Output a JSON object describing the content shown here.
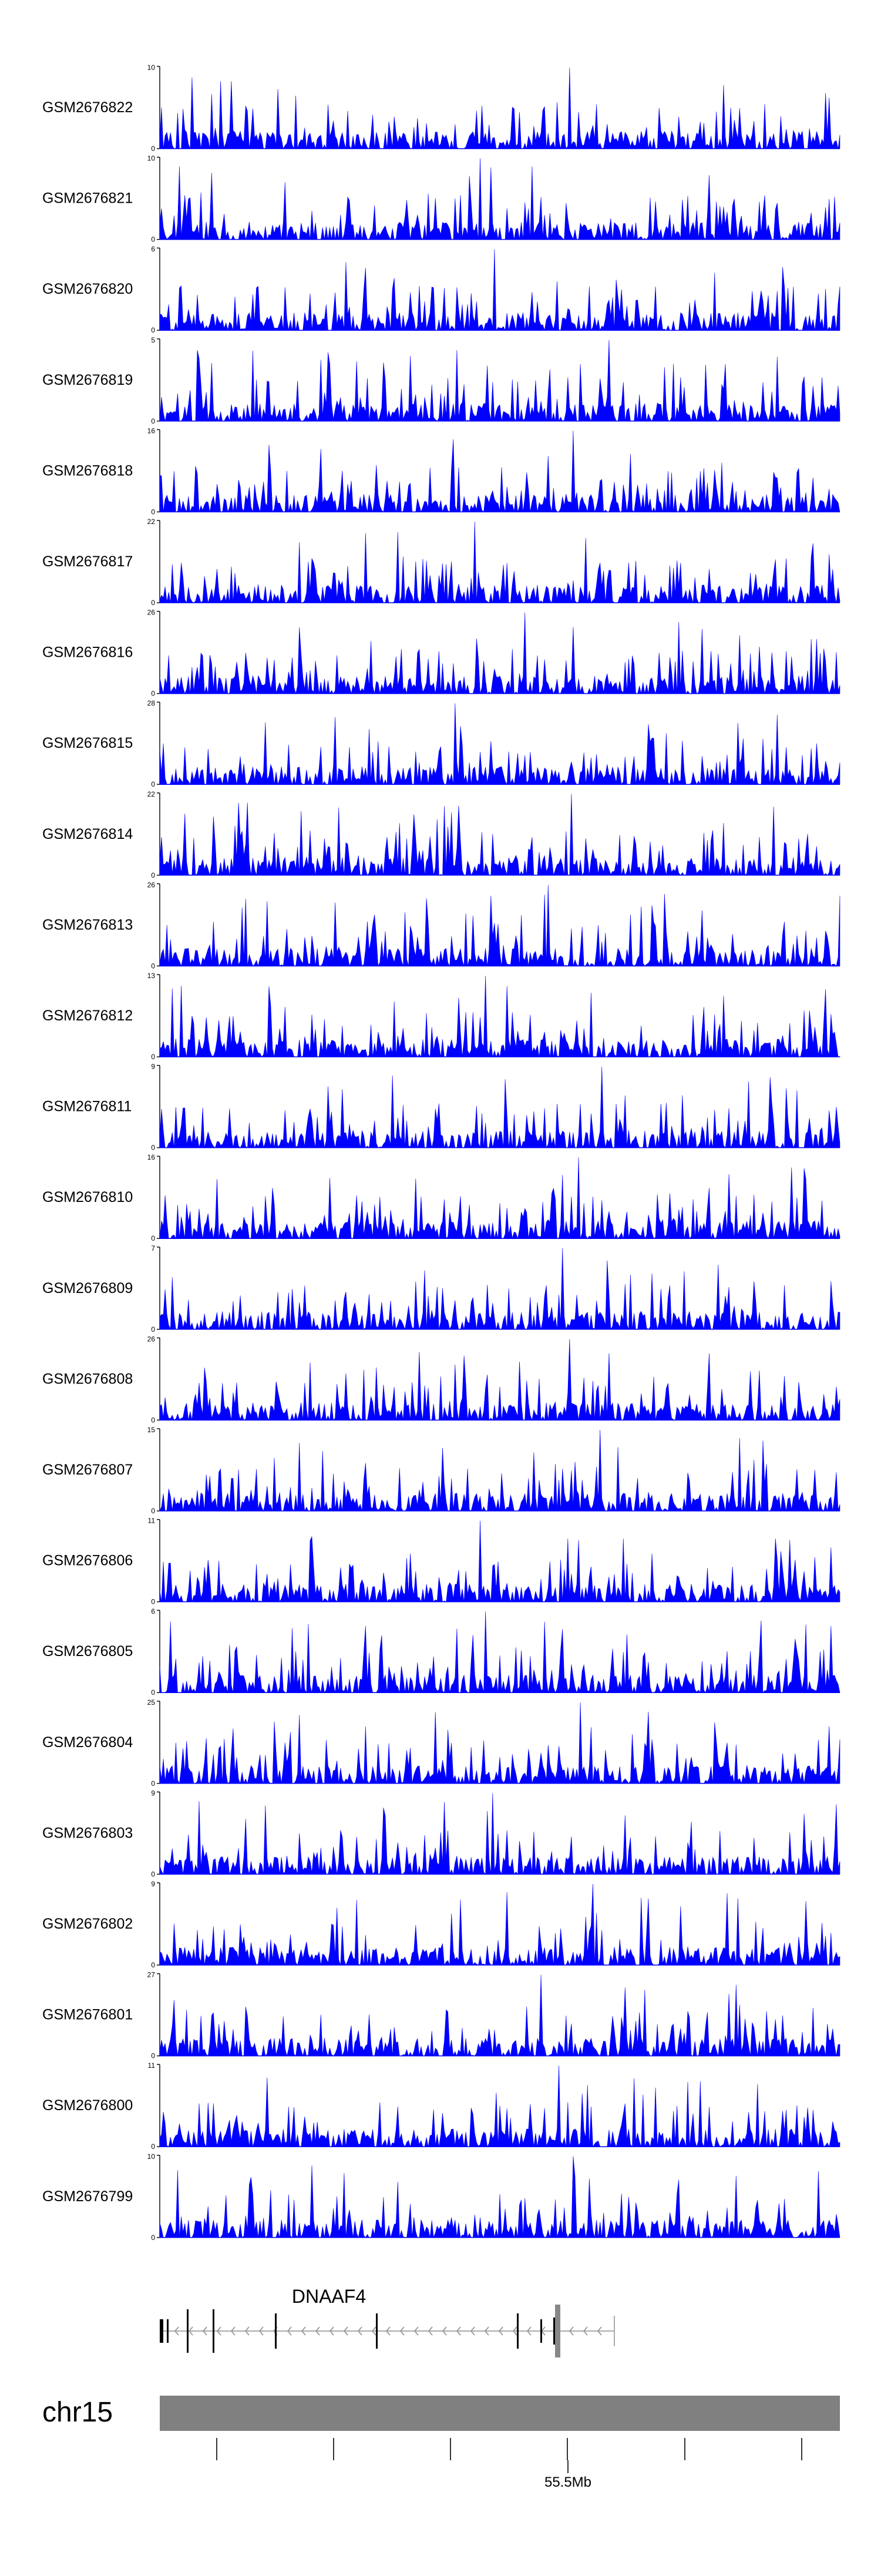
{
  "chart_data": {
    "type": "area",
    "title": "",
    "track_color": "#0000ff",
    "tracks": [
      {
        "name": "GSM2676822",
        "ymax": 10,
        "ymin": 0,
        "seed": 22
      },
      {
        "name": "GSM2676821",
        "ymax": 10,
        "ymin": 0,
        "seed": 21
      },
      {
        "name": "GSM2676820",
        "ymax": 6,
        "ymin": 0,
        "seed": 20
      },
      {
        "name": "GSM2676819",
        "ymax": 5,
        "ymin": 0,
        "seed": 19
      },
      {
        "name": "GSM2676818",
        "ymax": 16,
        "ymin": 0,
        "seed": 18
      },
      {
        "name": "GSM2676817",
        "ymax": 22,
        "ymin": 0,
        "seed": 17
      },
      {
        "name": "GSM2676816",
        "ymax": 26,
        "ymin": 0,
        "seed": 16
      },
      {
        "name": "GSM2676815",
        "ymax": 28,
        "ymin": 0,
        "seed": 15
      },
      {
        "name": "GSM2676814",
        "ymax": 22,
        "ymin": 0,
        "seed": 14
      },
      {
        "name": "GSM2676813",
        "ymax": 26,
        "ymin": 0,
        "seed": 13
      },
      {
        "name": "GSM2676812",
        "ymax": 13,
        "ymin": 0,
        "seed": 12
      },
      {
        "name": "GSM2676811",
        "ymax": 9,
        "ymin": 0,
        "seed": 11
      },
      {
        "name": "GSM2676810",
        "ymax": 16,
        "ymin": 0,
        "seed": 10
      },
      {
        "name": "GSM2676809",
        "ymax": 7,
        "ymin": 0,
        "seed": 9
      },
      {
        "name": "GSM2676808",
        "ymax": 26,
        "ymin": 0,
        "seed": 8
      },
      {
        "name": "GSM2676807",
        "ymax": 15,
        "ymin": 0,
        "seed": 7
      },
      {
        "name": "GSM2676806",
        "ymax": 11,
        "ymin": 0,
        "seed": 6
      },
      {
        "name": "GSM2676805",
        "ymax": 6,
        "ymin": 0,
        "seed": 5
      },
      {
        "name": "GSM2676804",
        "ymax": 25,
        "ymin": 0,
        "seed": 4
      },
      {
        "name": "GSM2676803",
        "ymax": 9,
        "ymin": 0,
        "seed": 3
      },
      {
        "name": "GSM2676802",
        "ymax": 9,
        "ymin": 0,
        "seed": 2
      },
      {
        "name": "GSM2676801",
        "ymax": 27,
        "ymin": 0,
        "seed": 1
      },
      {
        "name": "GSM2676800",
        "ymax": 11,
        "ymin": 0,
        "seed": 100
      },
      {
        "name": "GSM2676799",
        "ymax": 10,
        "ymin": 0,
        "seed": 99
      }
    ],
    "gene": {
      "name": "DNAAF4",
      "strand": "-",
      "color": "#000000"
    },
    "chromosome": {
      "name": "chr15",
      "color": "#808080",
      "tick_label": "55.5Mb"
    }
  }
}
